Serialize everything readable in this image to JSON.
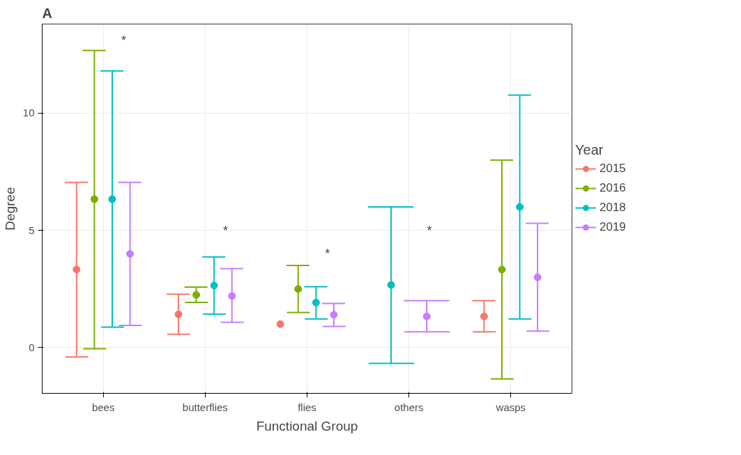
{
  "chart_data": {
    "type": "scatter",
    "title": "A",
    "xlabel": "Functional Group",
    "ylabel": "Degree",
    "legend_title": "Year",
    "categories": [
      "bees",
      "butterflies",
      "flies",
      "others",
      "wasps"
    ],
    "series": [
      {
        "name": "2015",
        "color": "#f8766d",
        "values": [
          3.33,
          1.42,
          1.0,
          null,
          1.33
        ],
        "errors": [
          [
            -0.4,
            7.05
          ],
          [
            0.57,
            2.28
          ],
          null,
          null,
          [
            0.67,
            2.0
          ]
        ]
      },
      {
        "name": "2016",
        "color": "#7cae00",
        "values": [
          6.33,
          2.25,
          2.5,
          null,
          3.33
        ],
        "errors": [
          [
            -0.05,
            12.67
          ],
          [
            1.93,
            2.58
          ],
          [
            1.5,
            3.5
          ],
          null,
          [
            -1.33,
            8.0
          ]
        ]
      },
      {
        "name": "2018",
        "color": "#00bfc4",
        "values": [
          6.33,
          2.65,
          1.92,
          2.67,
          6.0
        ],
        "errors": [
          [
            0.87,
            11.8
          ],
          [
            1.43,
            3.87
          ],
          [
            1.22,
            2.6
          ],
          [
            -0.67,
            6.0
          ],
          [
            1.22,
            10.77
          ]
        ]
      },
      {
        "name": "2019",
        "color": "#c77cff",
        "values": [
          4.0,
          2.2,
          1.4,
          1.33,
          3.0
        ],
        "errors": [
          [
            0.95,
            7.05
          ],
          [
            1.08,
            3.37
          ],
          [
            0.9,
            1.88
          ],
          [
            0.67,
            2.0
          ],
          [
            0.7,
            5.3
          ]
        ]
      }
    ],
    "ylim": [
      -1.95,
      13.8
    ],
    "yticks": [
      0,
      5,
      10
    ],
    "grid": true,
    "legend": "right",
    "marker": "circle",
    "annotations": [
      "*",
      "*",
      "*",
      "*"
    ]
  }
}
